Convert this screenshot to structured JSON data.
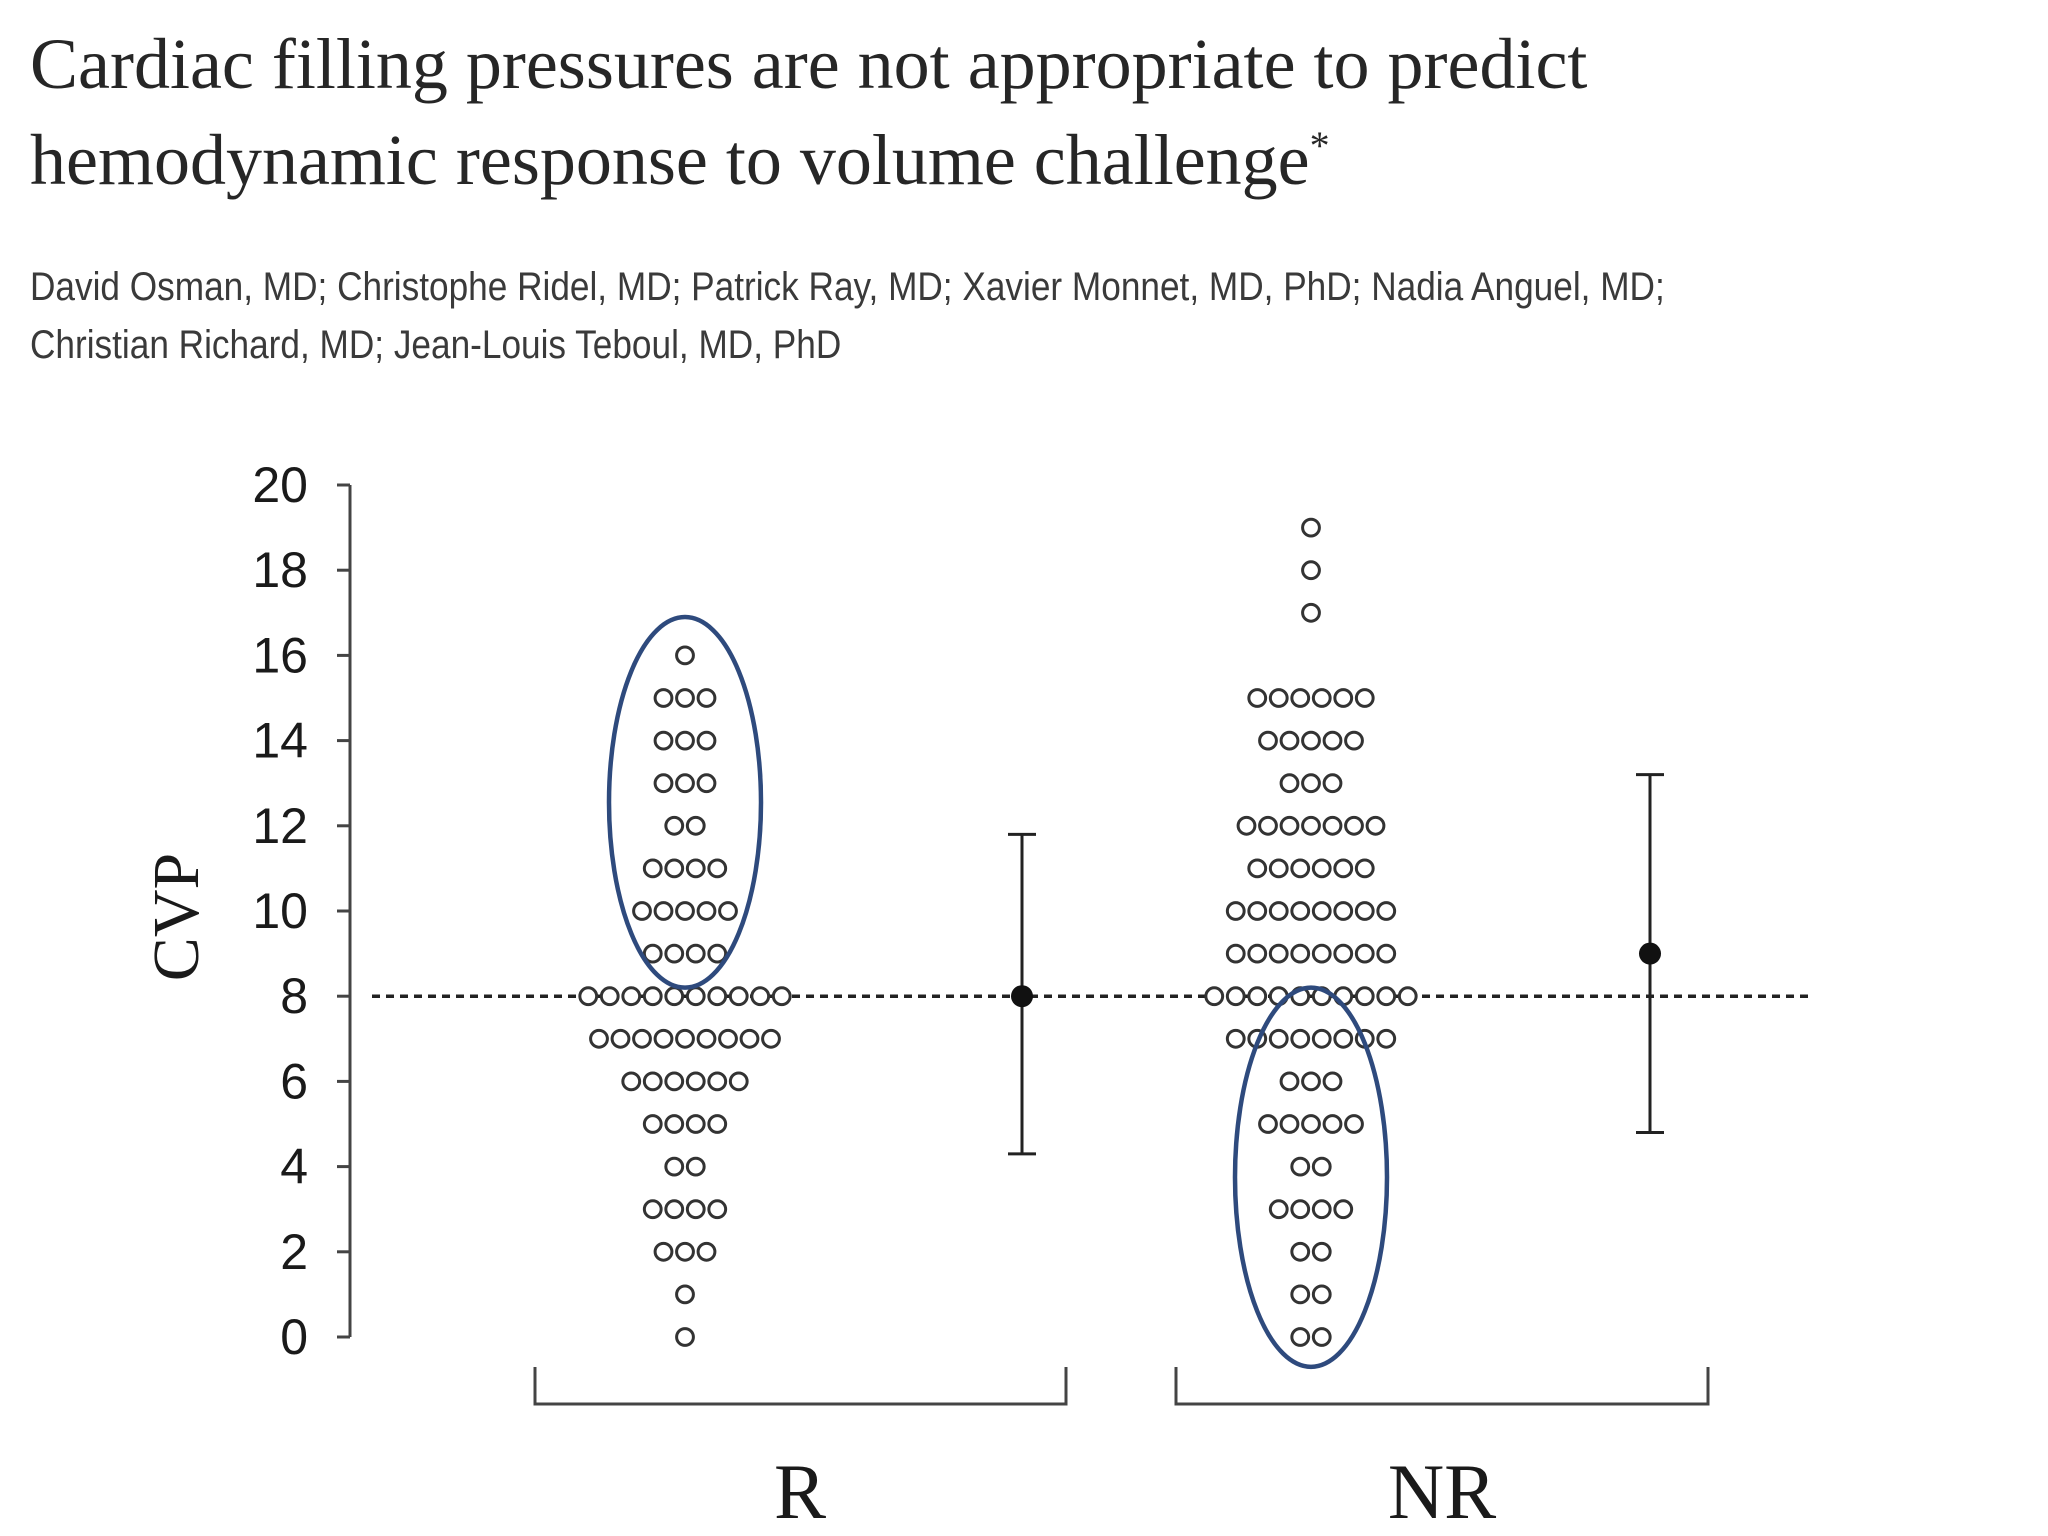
{
  "header": {
    "title_line1": "Cardiac filling pressures are not appropriate to predict",
    "title_line2": "hemodynamic response to volume challenge",
    "title_marker": "*",
    "authors_line1": "David Osman, MD; Christophe Ridel, MD; Patrick Ray, MD; Xavier Monnet, MD, PhD; Nadia Anguel, MD;",
    "authors_line2": "Christian Richard, MD; Jean-Louis Teboul, MD, PhD"
  },
  "chart_data": {
    "type": "scatter",
    "subtype": "dot-plot",
    "ylabel": "CVP",
    "ylim": [
      0,
      20
    ],
    "yticks": [
      0,
      2,
      4,
      6,
      8,
      10,
      12,
      14,
      16,
      18,
      20
    ],
    "reference_line": {
      "y": 8,
      "style": "dashed"
    },
    "groups": [
      {
        "label": "R",
        "counts": [
          {
            "cvp": 16,
            "n": 1
          },
          {
            "cvp": 15,
            "n": 3
          },
          {
            "cvp": 14,
            "n": 3
          },
          {
            "cvp": 13,
            "n": 3
          },
          {
            "cvp": 12,
            "n": 2
          },
          {
            "cvp": 11,
            "n": 4
          },
          {
            "cvp": 10,
            "n": 5
          },
          {
            "cvp": 9,
            "n": 4
          },
          {
            "cvp": 8,
            "n": 10
          },
          {
            "cvp": 7,
            "n": 9
          },
          {
            "cvp": 6,
            "n": 6
          },
          {
            "cvp": 5,
            "n": 4
          },
          {
            "cvp": 4,
            "n": 2
          },
          {
            "cvp": 3,
            "n": 4
          },
          {
            "cvp": 2,
            "n": 3
          },
          {
            "cvp": 1,
            "n": 1
          },
          {
            "cvp": 0,
            "n": 1
          }
        ],
        "summary": {
          "mean": 8,
          "low": 4.3,
          "high": 11.8
        },
        "highlight_ellipse": {
          "from_cvp": 8.2,
          "to_cvp": 16.9
        }
      },
      {
        "label": "NR",
        "counts": [
          {
            "cvp": 19,
            "n": 1
          },
          {
            "cvp": 18,
            "n": 1
          },
          {
            "cvp": 17,
            "n": 1
          },
          {
            "cvp": 15,
            "n": 6
          },
          {
            "cvp": 14,
            "n": 5
          },
          {
            "cvp": 13,
            "n": 3
          },
          {
            "cvp": 12,
            "n": 7
          },
          {
            "cvp": 11,
            "n": 6
          },
          {
            "cvp": 10,
            "n": 8
          },
          {
            "cvp": 9,
            "n": 8
          },
          {
            "cvp": 8,
            "n": 10
          },
          {
            "cvp": 7,
            "n": 8
          },
          {
            "cvp": 6,
            "n": 3
          },
          {
            "cvp": 5,
            "n": 5
          },
          {
            "cvp": 4,
            "n": 2
          },
          {
            "cvp": 3,
            "n": 4
          },
          {
            "cvp": 2,
            "n": 2
          },
          {
            "cvp": 1,
            "n": 2
          },
          {
            "cvp": 0,
            "n": 2
          }
        ],
        "summary": {
          "mean": 9,
          "low": 4.8,
          "high": 13.2
        },
        "highlight_ellipse": {
          "from_cvp": -0.7,
          "to_cvp": 8.2
        }
      }
    ],
    "colors": {
      "dots": "#333333",
      "ellipse": "#2e4a7d",
      "axis": "#444444"
    }
  }
}
